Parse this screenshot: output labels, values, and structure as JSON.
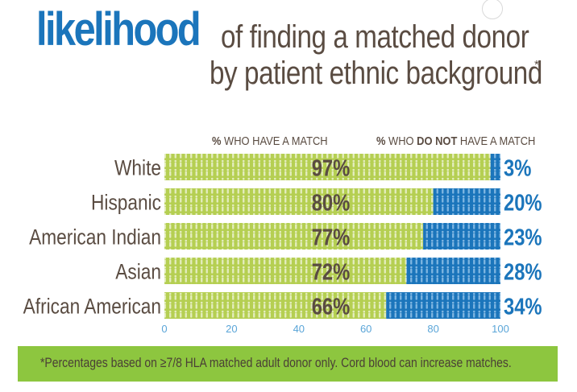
{
  "title": {
    "highlight": "likelihood",
    "line1": "of finding a matched donor",
    "line2": "by patient ethnic background",
    "asterisk": "*"
  },
  "headers": {
    "match_sym": "%",
    "match_text": " WHO HAVE A MATCH",
    "nomatch_sym": "%",
    "nomatch_pre": " WHO ",
    "nomatch_bold": "DO NOT",
    "nomatch_post": " HAVE A MATCH"
  },
  "footnote": "*Percentages based on ≥7/8 HLA matched adult donor only. Cord blood can increase matches.",
  "colors": {
    "match": "#b5cf52",
    "nomatch": "#1b75bb",
    "label": "#5a4c42",
    "value_match": "#5a4c42",
    "value_nomatch": "#1b75bb",
    "axis_ticks": "#5aa5d8",
    "footer_bg": "#8dc63f"
  },
  "chart_data": {
    "type": "bar",
    "orientation": "horizontal",
    "stacked": true,
    "categories": [
      "White",
      "Hispanic",
      "American Indian",
      "Asian",
      "African American"
    ],
    "series": [
      {
        "name": "% WHO HAVE A MATCH",
        "values": [
          97,
          80,
          77,
          72,
          66
        ]
      },
      {
        "name": "% WHO DO NOT HAVE A MATCH",
        "values": [
          3,
          20,
          23,
          28,
          34
        ]
      }
    ],
    "value_labels_match": [
      "97%",
      "80%",
      "77%",
      "72%",
      "66%"
    ],
    "value_labels_nomatch": [
      "3%",
      "20%",
      "23%",
      "28%",
      "34%"
    ],
    "x_ticks": [
      0,
      20,
      40,
      60,
      80,
      100
    ],
    "xlim": [
      0,
      100
    ],
    "xlabel": "",
    "ylabel": "",
    "grid": false,
    "legend": "top column headers"
  }
}
